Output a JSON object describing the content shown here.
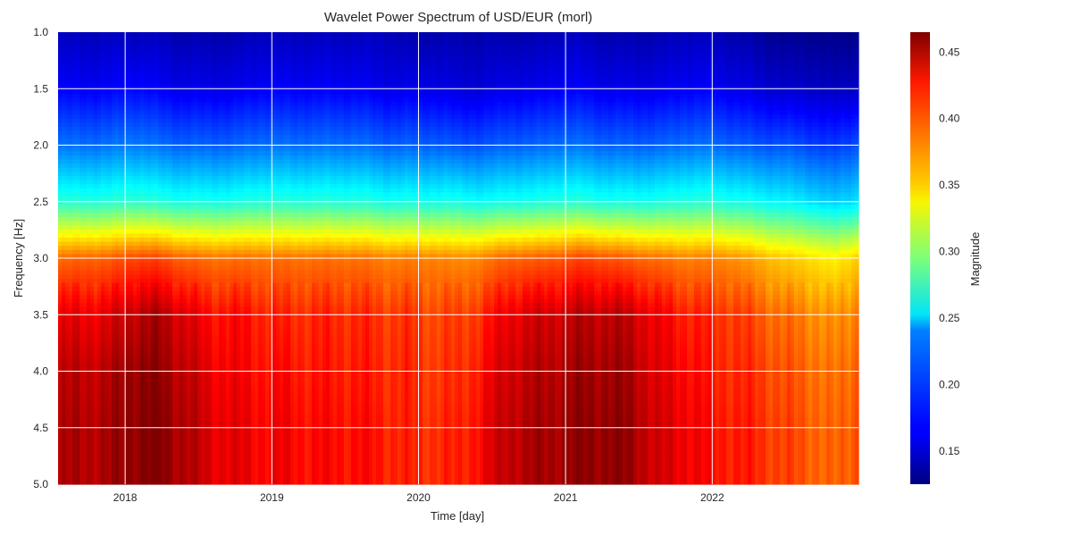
{
  "chart_data": {
    "type": "heatmap",
    "title": "Wavelet Power Spectrum of USD/EUR (morl)",
    "xlabel": "Time [day]",
    "ylabel": "Frequency [Hz]",
    "colorbar_label": "Magnitude",
    "colormap": "jet",
    "color_range": [
      0.125,
      0.465
    ],
    "xlim": [
      "2017-07-18",
      "2022-12-31"
    ],
    "ylim": [
      5.0,
      1.0
    ],
    "y_inverted": true,
    "grid": true,
    "x_ticks": [
      "2018",
      "2019",
      "2020",
      "2021",
      "2022"
    ],
    "x_tick_dates": [
      "2018-01-01",
      "2019-01-01",
      "2020-01-01",
      "2021-01-01",
      "2022-01-01"
    ],
    "y_ticks": [
      "1.0",
      "1.5",
      "2.0",
      "2.5",
      "3.0",
      "3.5",
      "4.0",
      "4.5",
      "5.0"
    ],
    "y_tick_values": [
      1.0,
      1.5,
      2.0,
      2.5,
      3.0,
      3.5,
      4.0,
      4.5,
      5.0
    ],
    "colorbar_ticks": [
      "0.15",
      "0.20",
      "0.25",
      "0.30",
      "0.35",
      "0.40",
      "0.45"
    ],
    "colorbar_tick_values": [
      0.15,
      0.2,
      0.25,
      0.3,
      0.35,
      0.4,
      0.45
    ],
    "x": [
      "2017-07",
      "2017-09",
      "2017-11",
      "2018-01",
      "2018-03",
      "2018-05",
      "2018-07",
      "2018-09",
      "2018-11",
      "2019-01",
      "2019-03",
      "2019-05",
      "2019-07",
      "2019-09",
      "2019-11",
      "2020-01",
      "2020-03",
      "2020-05",
      "2020-07",
      "2020-09",
      "2020-11",
      "2021-01",
      "2021-03",
      "2021-05",
      "2021-07",
      "2021-09",
      "2021-11",
      "2022-01",
      "2022-03",
      "2022-05",
      "2022-07",
      "2022-09",
      "2022-11"
    ],
    "y": [
      1.0,
      1.5,
      2.0,
      2.5,
      3.0,
      3.5,
      4.0,
      4.5,
      5.0
    ],
    "z": [
      [
        0.145,
        0.145,
        0.145,
        0.145,
        0.145,
        0.14,
        0.14,
        0.14,
        0.145,
        0.145,
        0.145,
        0.145,
        0.145,
        0.145,
        0.14,
        0.14,
        0.14,
        0.14,
        0.14,
        0.14,
        0.145,
        0.145,
        0.14,
        0.14,
        0.14,
        0.145,
        0.145,
        0.14,
        0.135,
        0.13,
        0.13,
        0.128,
        0.13
      ],
      [
        0.165,
        0.165,
        0.165,
        0.17,
        0.165,
        0.16,
        0.16,
        0.16,
        0.165,
        0.165,
        0.165,
        0.165,
        0.165,
        0.16,
        0.16,
        0.16,
        0.155,
        0.155,
        0.16,
        0.16,
        0.165,
        0.165,
        0.16,
        0.16,
        0.16,
        0.165,
        0.165,
        0.16,
        0.155,
        0.15,
        0.15,
        0.145,
        0.15
      ],
      [
        0.205,
        0.205,
        0.205,
        0.21,
        0.205,
        0.2,
        0.2,
        0.2,
        0.205,
        0.205,
        0.205,
        0.205,
        0.205,
        0.2,
        0.2,
        0.2,
        0.195,
        0.195,
        0.2,
        0.2,
        0.205,
        0.205,
        0.2,
        0.2,
        0.2,
        0.205,
        0.205,
        0.2,
        0.195,
        0.195,
        0.19,
        0.185,
        0.195
      ],
      [
        0.265,
        0.265,
        0.265,
        0.27,
        0.265,
        0.26,
        0.26,
        0.26,
        0.265,
        0.265,
        0.265,
        0.265,
        0.265,
        0.26,
        0.26,
        0.26,
        0.26,
        0.255,
        0.26,
        0.26,
        0.265,
        0.265,
        0.26,
        0.26,
        0.26,
        0.265,
        0.265,
        0.26,
        0.255,
        0.25,
        0.245,
        0.235,
        0.245
      ],
      [
        0.385,
        0.39,
        0.39,
        0.4,
        0.4,
        0.39,
        0.385,
        0.385,
        0.385,
        0.385,
        0.385,
        0.385,
        0.385,
        0.38,
        0.38,
        0.38,
        0.375,
        0.38,
        0.39,
        0.39,
        0.395,
        0.4,
        0.395,
        0.39,
        0.385,
        0.38,
        0.38,
        0.375,
        0.365,
        0.355,
        0.35,
        0.34,
        0.355
      ],
      [
        0.425,
        0.43,
        0.43,
        0.445,
        0.45,
        0.435,
        0.42,
        0.42,
        0.415,
        0.41,
        0.41,
        0.41,
        0.41,
        0.405,
        0.405,
        0.4,
        0.4,
        0.41,
        0.43,
        0.435,
        0.44,
        0.445,
        0.445,
        0.44,
        0.425,
        0.415,
        0.41,
        0.405,
        0.395,
        0.385,
        0.38,
        0.37,
        0.385
      ],
      [
        0.44,
        0.445,
        0.445,
        0.46,
        0.46,
        0.445,
        0.43,
        0.425,
        0.42,
        0.42,
        0.415,
        0.415,
        0.415,
        0.41,
        0.41,
        0.405,
        0.405,
        0.42,
        0.44,
        0.445,
        0.45,
        0.455,
        0.455,
        0.45,
        0.43,
        0.425,
        0.415,
        0.41,
        0.405,
        0.395,
        0.39,
        0.38,
        0.395
      ],
      [
        0.445,
        0.45,
        0.45,
        0.462,
        0.465,
        0.45,
        0.435,
        0.43,
        0.425,
        0.425,
        0.42,
        0.42,
        0.42,
        0.415,
        0.41,
        0.41,
        0.41,
        0.425,
        0.445,
        0.45,
        0.455,
        0.46,
        0.46,
        0.455,
        0.435,
        0.43,
        0.42,
        0.415,
        0.41,
        0.4,
        0.395,
        0.385,
        0.4
      ],
      [
        0.445,
        0.45,
        0.45,
        0.462,
        0.465,
        0.45,
        0.435,
        0.43,
        0.425,
        0.425,
        0.42,
        0.42,
        0.42,
        0.415,
        0.41,
        0.41,
        0.41,
        0.425,
        0.445,
        0.45,
        0.455,
        0.46,
        0.46,
        0.455,
        0.435,
        0.43,
        0.42,
        0.415,
        0.41,
        0.4,
        0.395,
        0.385,
        0.4
      ]
    ]
  }
}
